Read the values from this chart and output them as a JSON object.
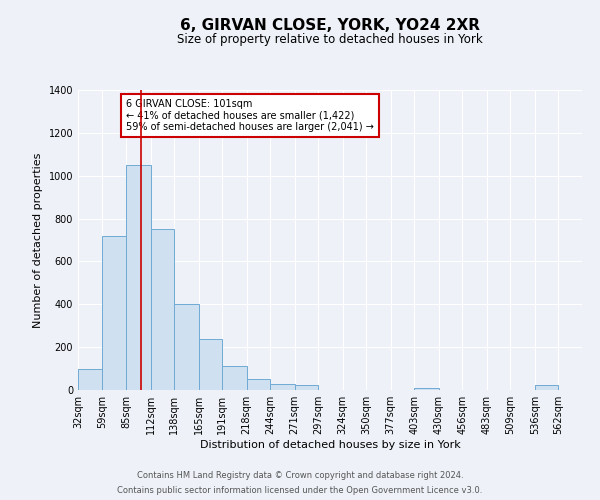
{
  "title": "6, GIRVAN CLOSE, YORK, YO24 2XR",
  "subtitle": "Size of property relative to detached houses in York",
  "xlabel": "Distribution of detached houses by size in York",
  "ylabel": "Number of detached properties",
  "bar_color": "#cfe0f0",
  "bar_edge_color": "#6faad4",
  "bin_labels": [
    "32sqm",
    "59sqm",
    "85sqm",
    "112sqm",
    "138sqm",
    "165sqm",
    "191sqm",
    "218sqm",
    "244sqm",
    "271sqm",
    "297sqm",
    "324sqm",
    "350sqm",
    "377sqm",
    "403sqm",
    "430sqm",
    "456sqm",
    "483sqm",
    "509sqm",
    "536sqm",
    "562sqm"
  ],
  "bin_edges": [
    32,
    59,
    85,
    112,
    138,
    165,
    191,
    218,
    244,
    271,
    297,
    324,
    350,
    377,
    403,
    430,
    456,
    483,
    509,
    536,
    562,
    588
  ],
  "bar_heights": [
    100,
    720,
    1050,
    750,
    400,
    240,
    110,
    50,
    30,
    25,
    0,
    0,
    0,
    0,
    10,
    0,
    0,
    0,
    0,
    25,
    0
  ],
  "ylim": [
    0,
    1400
  ],
  "yticks": [
    0,
    200,
    400,
    600,
    800,
    1000,
    1200,
    1400
  ],
  "red_line_x": 101,
  "annotation_text": "6 GIRVAN CLOSE: 101sqm\n← 41% of detached houses are smaller (1,422)\n59% of semi-detached houses are larger (2,041) →",
  "annotation_box_color": "#ffffff",
  "annotation_box_edge": "#cc0000",
  "footer_line1": "Contains HM Land Registry data © Crown copyright and database right 2024.",
  "footer_line2": "Contains public sector information licensed under the Open Government Licence v3.0.",
  "background_color": "#eef2f8",
  "grid_color": "#ffffff",
  "title_fontsize": 11,
  "subtitle_fontsize": 8.5,
  "axis_label_fontsize": 8,
  "tick_fontsize": 7,
  "footer_fontsize": 6
}
